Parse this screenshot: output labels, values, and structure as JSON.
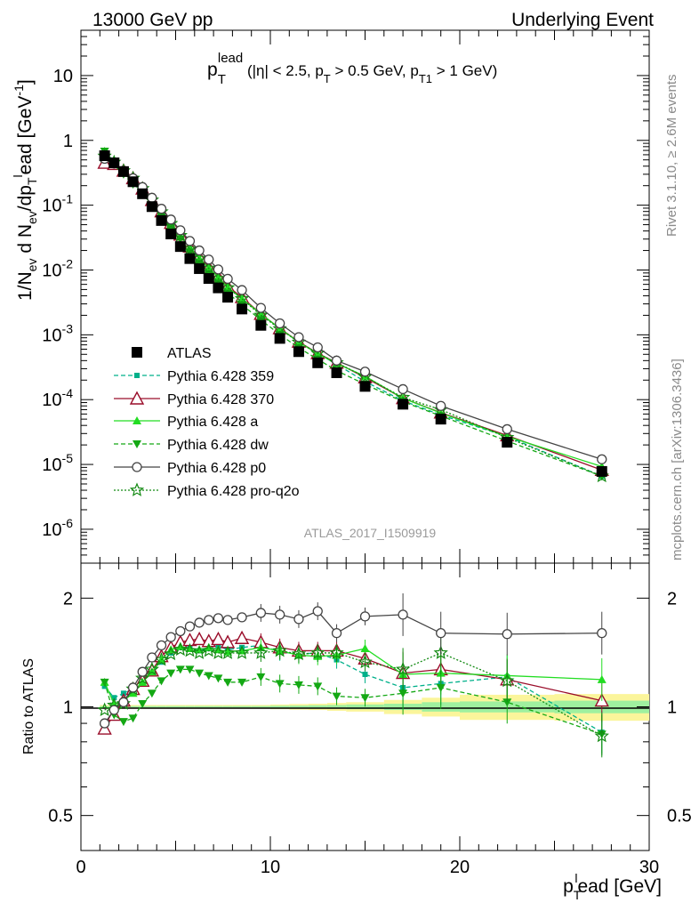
{
  "header": {
    "left": "13000 GeV pp",
    "right": "Underlying Event"
  },
  "side": {
    "rivet": "Rivet 3.1.10, ≥ 2.6M events",
    "mcplots": "mcplots.cern.ch [arXiv:1306.3436]"
  },
  "analysis_id": "ATLAS_2017_I1509919",
  "chart_data": [
    {
      "type": "line",
      "panel": "main",
      "title": "p_T^lead (|η| < 2.5, p_T > 0.5 GeV, p_T1 > 1 GeV)",
      "xlabel": "p_T^l ead [GeV]",
      "ylabel": "1/N_ev d N_ev/dp_T^l ead [GeV^-1]",
      "xlim": [
        0,
        30
      ],
      "ylim": [
        3e-07,
        50
      ],
      "yscale": "log",
      "yticks": [
        "10^-6",
        "10^-5",
        "10^-4",
        "10^-3",
        "10^-2",
        "10^-1",
        "1",
        "10"
      ],
      "legend_position": "bottom-left",
      "x": [
        1.25,
        1.75,
        2.25,
        2.75,
        3.25,
        3.75,
        4.25,
        4.75,
        5.25,
        5.75,
        6.25,
        6.75,
        7.25,
        7.75,
        8.5,
        9.5,
        10.5,
        11.5,
        12.5,
        13.5,
        15,
        17,
        19,
        22.5,
        27.5
      ],
      "series": [
        {
          "name": "ATLAS",
          "color": "#000000",
          "marker": "filled-square",
          "values": [
            0.58,
            0.45,
            0.33,
            0.23,
            0.15,
            0.095,
            0.058,
            0.036,
            0.023,
            0.015,
            0.0105,
            0.0074,
            0.0053,
            0.0038,
            0.0025,
            0.0014,
            0.00088,
            0.00055,
            0.00037,
            0.00026,
            0.00016,
            8.5e-05,
            5e-05,
            2.2e-05,
            7.8e-06
          ]
        },
        {
          "name": "Pythia 6.428 359",
          "color": "#00b08a",
          "marker": "small-filled-square",
          "line": "dashed",
          "values": [
            0.66,
            0.48,
            0.36,
            0.26,
            0.18,
            0.12,
            0.078,
            0.052,
            0.035,
            0.022,
            0.015,
            0.011,
            0.0078,
            0.0055,
            0.0037,
            0.0021,
            0.00125,
            0.00077,
            0.00052,
            0.00035,
            0.00019,
            9.6e-05,
            5.8e-05,
            2.7e-05,
            6.6e-06
          ]
        },
        {
          "name": "Pythia 6.428 370",
          "color": "#9a0d2a",
          "marker": "open-triangle",
          "line": "solid",
          "values": [
            0.45,
            0.43,
            0.34,
            0.26,
            0.18,
            0.12,
            0.08,
            0.053,
            0.035,
            0.023,
            0.016,
            0.011,
            0.0079,
            0.0056,
            0.0038,
            0.0021,
            0.00126,
            0.00078,
            0.00052,
            0.00037,
            0.00022,
            0.000105,
            6.3e-05,
            2.8e-05,
            8.2e-06
          ]
        },
        {
          "name": "Pythia 6.428 a",
          "color": "#22dd22",
          "marker": "filled-triangle",
          "line": "solid",
          "values": [
            0.68,
            0.46,
            0.34,
            0.25,
            0.18,
            0.12,
            0.079,
            0.052,
            0.034,
            0.022,
            0.015,
            0.0108,
            0.0077,
            0.0054,
            0.0036,
            0.0021,
            0.00125,
            0.00077,
            0.00051,
            0.00036,
            0.00023,
            0.000105,
            6.2e-05,
            2.7e-05,
            9.3e-06
          ]
        },
        {
          "name": "Pythia 6.428 dw",
          "color": "#14a814",
          "marker": "filled-inverted-triangle",
          "line": "dashed",
          "values": [
            0.68,
            0.43,
            0.3,
            0.21,
            0.15,
            0.1,
            0.068,
            0.045,
            0.03,
            0.019,
            0.0128,
            0.0088,
            0.0063,
            0.0044,
            0.0029,
            0.0017,
            0.00101,
            0.00063,
            0.00042,
            0.00028,
            0.000172,
            9.3e-05,
            5.6e-05,
            2.3e-05,
            6.6e-06
          ]
        },
        {
          "name": "Pythia 6.428 p0",
          "color": "#444444",
          "marker": "open-circle",
          "line": "solid",
          "values": [
            0.52,
            0.44,
            0.34,
            0.26,
            0.19,
            0.13,
            0.088,
            0.06,
            0.041,
            0.028,
            0.02,
            0.0145,
            0.0102,
            0.0073,
            0.0049,
            0.0026,
            0.0015,
            0.00092,
            0.00064,
            0.0004,
            0.00027,
            0.000145,
            8e-05,
            3.5e-05,
            1.2e-05
          ]
        },
        {
          "name": "Pythia 6.428 pro-q2o",
          "color": "#138a13",
          "marker": "open-star",
          "line": "dotted",
          "values": [
            0.57,
            0.46,
            0.34,
            0.26,
            0.18,
            0.12,
            0.079,
            0.052,
            0.034,
            0.021,
            0.015,
            0.0106,
            0.0074,
            0.0053,
            0.0036,
            0.002,
            0.00124,
            0.00077,
            0.00052,
            0.00037,
            0.000225,
            0.000108,
            7e-05,
            2.6e-05,
            6.6e-06
          ]
        }
      ]
    },
    {
      "type": "line",
      "panel": "ratio",
      "ylabel": "Ratio to ATLAS",
      "xlabel": "p_T^l ead [GeV]",
      "xlim": [
        0,
        30
      ],
      "ylim": [
        0.4,
        2.5
      ],
      "yscale": "log",
      "yticks": [
        "0.5",
        "1",
        "2"
      ],
      "xticks": [
        "0",
        "10",
        "20",
        "30"
      ],
      "x": [
        1.25,
        1.75,
        2.25,
        2.75,
        3.25,
        3.75,
        4.25,
        4.75,
        5.25,
        5.75,
        6.25,
        6.75,
        7.25,
        7.75,
        8.5,
        9.5,
        10.5,
        11.5,
        12.5,
        13.5,
        15,
        17,
        19,
        22.5,
        27.5
      ],
      "data_band": {
        "edges": [
          1,
          1.5,
          2,
          2.5,
          3,
          3.5,
          4,
          4.5,
          5,
          5.5,
          6,
          6.5,
          7,
          7.5,
          8,
          9,
          10,
          11,
          12,
          13,
          14,
          16,
          18,
          20,
          25,
          30
        ],
        "stat": [
          0.005,
          0.005,
          0.005,
          0.005,
          0.005,
          0.005,
          0.005,
          0.005,
          0.005,
          0.005,
          0.005,
          0.005,
          0.005,
          0.005,
          0.005,
          0.005,
          0.007,
          0.008,
          0.01,
          0.012,
          0.015,
          0.02,
          0.03,
          0.035,
          0.04
        ],
        "total": [
          0.012,
          0.012,
          0.012,
          0.012,
          0.012,
          0.012,
          0.012,
          0.012,
          0.012,
          0.012,
          0.012,
          0.012,
          0.012,
          0.012,
          0.012,
          0.012,
          0.015,
          0.018,
          0.02,
          0.025,
          0.03,
          0.045,
          0.06,
          0.08,
          0.085
        ]
      },
      "series": [
        {
          "name": "Pythia 6.428 359",
          "values": [
            1.14,
            1.06,
            1.09,
            1.12,
            1.19,
            1.25,
            1.33,
            1.41,
            1.46,
            1.45,
            1.43,
            1.45,
            1.47,
            1.44,
            1.46,
            1.48,
            1.42,
            1.4,
            1.41,
            1.35,
            1.23,
            1.13,
            1.16,
            1.21,
            0.85
          ]
        },
        {
          "name": "Pythia 6.428 370",
          "values": [
            0.87,
            0.95,
            1.04,
            1.12,
            1.18,
            1.26,
            1.38,
            1.46,
            1.51,
            1.53,
            1.54,
            1.52,
            1.54,
            1.51,
            1.55,
            1.51,
            1.46,
            1.43,
            1.43,
            1.43,
            1.36,
            1.24,
            1.27,
            1.19,
            1.04
          ]
        },
        {
          "name": "Pythia 6.428 a",
          "values": [
            1.17,
            1.02,
            1.04,
            1.09,
            1.17,
            1.25,
            1.35,
            1.44,
            1.47,
            1.45,
            1.44,
            1.46,
            1.44,
            1.42,
            1.43,
            1.46,
            1.43,
            1.39,
            1.38,
            1.39,
            1.45,
            1.23,
            1.24,
            1.22,
            1.19
          ]
        },
        {
          "name": "Pythia 6.428 dw",
          "values": [
            1.17,
            0.95,
            0.91,
            0.93,
            1.02,
            1.09,
            1.18,
            1.24,
            1.27,
            1.27,
            1.24,
            1.22,
            1.2,
            1.17,
            1.17,
            1.21,
            1.16,
            1.15,
            1.14,
            1.07,
            1.06,
            1.09,
            1.13,
            1.03,
            0.84
          ]
        },
        {
          "name": "Pythia 6.428 p0",
          "values": [
            0.9,
            0.98,
            1.03,
            1.13,
            1.25,
            1.37,
            1.48,
            1.56,
            1.62,
            1.67,
            1.71,
            1.74,
            1.76,
            1.74,
            1.77,
            1.82,
            1.8,
            1.75,
            1.84,
            1.6,
            1.78,
            1.8,
            1.6,
            1.59,
            1.6
          ]
        },
        {
          "name": "Pythia 6.428 pro-q2o",
          "values": [
            0.98,
            1.01,
            1.02,
            1.12,
            1.2,
            1.27,
            1.35,
            1.4,
            1.44,
            1.43,
            1.41,
            1.43,
            1.41,
            1.41,
            1.41,
            1.41,
            1.43,
            1.4,
            1.41,
            1.41,
            1.33,
            1.27,
            1.41,
            1.18,
            0.83
          ]
        }
      ]
    }
  ]
}
